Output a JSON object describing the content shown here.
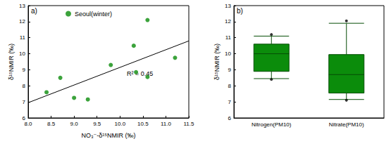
{
  "chart_data": [
    {
      "type": "scatter",
      "label": "a)",
      "x_label": "NO₃⁻-δ¹⁵NMIR (‰)",
      "y_label": "δ¹⁵NMIR (‰)",
      "annotation": "R² = 0.45",
      "series": [
        {
          "name": "Seoul(winter)",
          "color": "#0b8c0b",
          "marker": "circle",
          "x": [
            8.4,
            8.7,
            9.0,
            9.3,
            9.8,
            10.3,
            10.35,
            10.6,
            10.6,
            11.2
          ],
          "values": [
            7.6,
            8.5,
            7.25,
            7.15,
            9.3,
            10.5,
            8.85,
            12.1,
            8.55,
            9.75
          ]
        }
      ],
      "trend": {
        "x": [
          8.0,
          11.5
        ],
        "values": [
          6.95,
          10.8
        ]
      },
      "xlim": [
        8,
        11.5
      ],
      "xticks": [
        {
          "value": 8,
          "label": "8.0"
        },
        {
          "value": 8.5,
          "label": "8.5"
        },
        {
          "value": 9,
          "label": "9.0"
        },
        {
          "value": 9.5,
          "label": "9.5"
        },
        {
          "value": 10,
          "label": "10.0"
        },
        {
          "value": 10.5,
          "label": "10.5"
        },
        {
          "value": 11,
          "label": "11.0"
        },
        {
          "value": 11.5,
          "label": "11.5"
        }
      ],
      "ylim": [
        6,
        13
      ],
      "yticks": [
        6,
        7,
        8,
        9,
        10,
        11,
        12,
        13
      ],
      "legend": "upper left",
      "grid": false
    },
    {
      "type": "boxplot",
      "label": "b)",
      "y_label": "δ¹⁵NMIR (‰)",
      "categories": [
        "Nitrogen(PM10)",
        "Nitrate(PM10)"
      ],
      "boxes": [
        {
          "min": 8.45,
          "q1": 8.9,
          "median": 10.0,
          "q3": 10.6,
          "max": 11.1,
          "outliers": [
            8.4,
            11.2
          ]
        },
        {
          "min": 7.15,
          "q1": 7.55,
          "median": 8.7,
          "q3": 9.95,
          "max": 11.9,
          "outliers": [
            7.1,
            12.05
          ]
        }
      ],
      "color": "#0b8c0b",
      "ylim": [
        6,
        13
      ],
      "yticks": [
        6,
        7,
        8,
        9,
        10,
        11,
        12,
        13
      ],
      "grid": false
    }
  ]
}
